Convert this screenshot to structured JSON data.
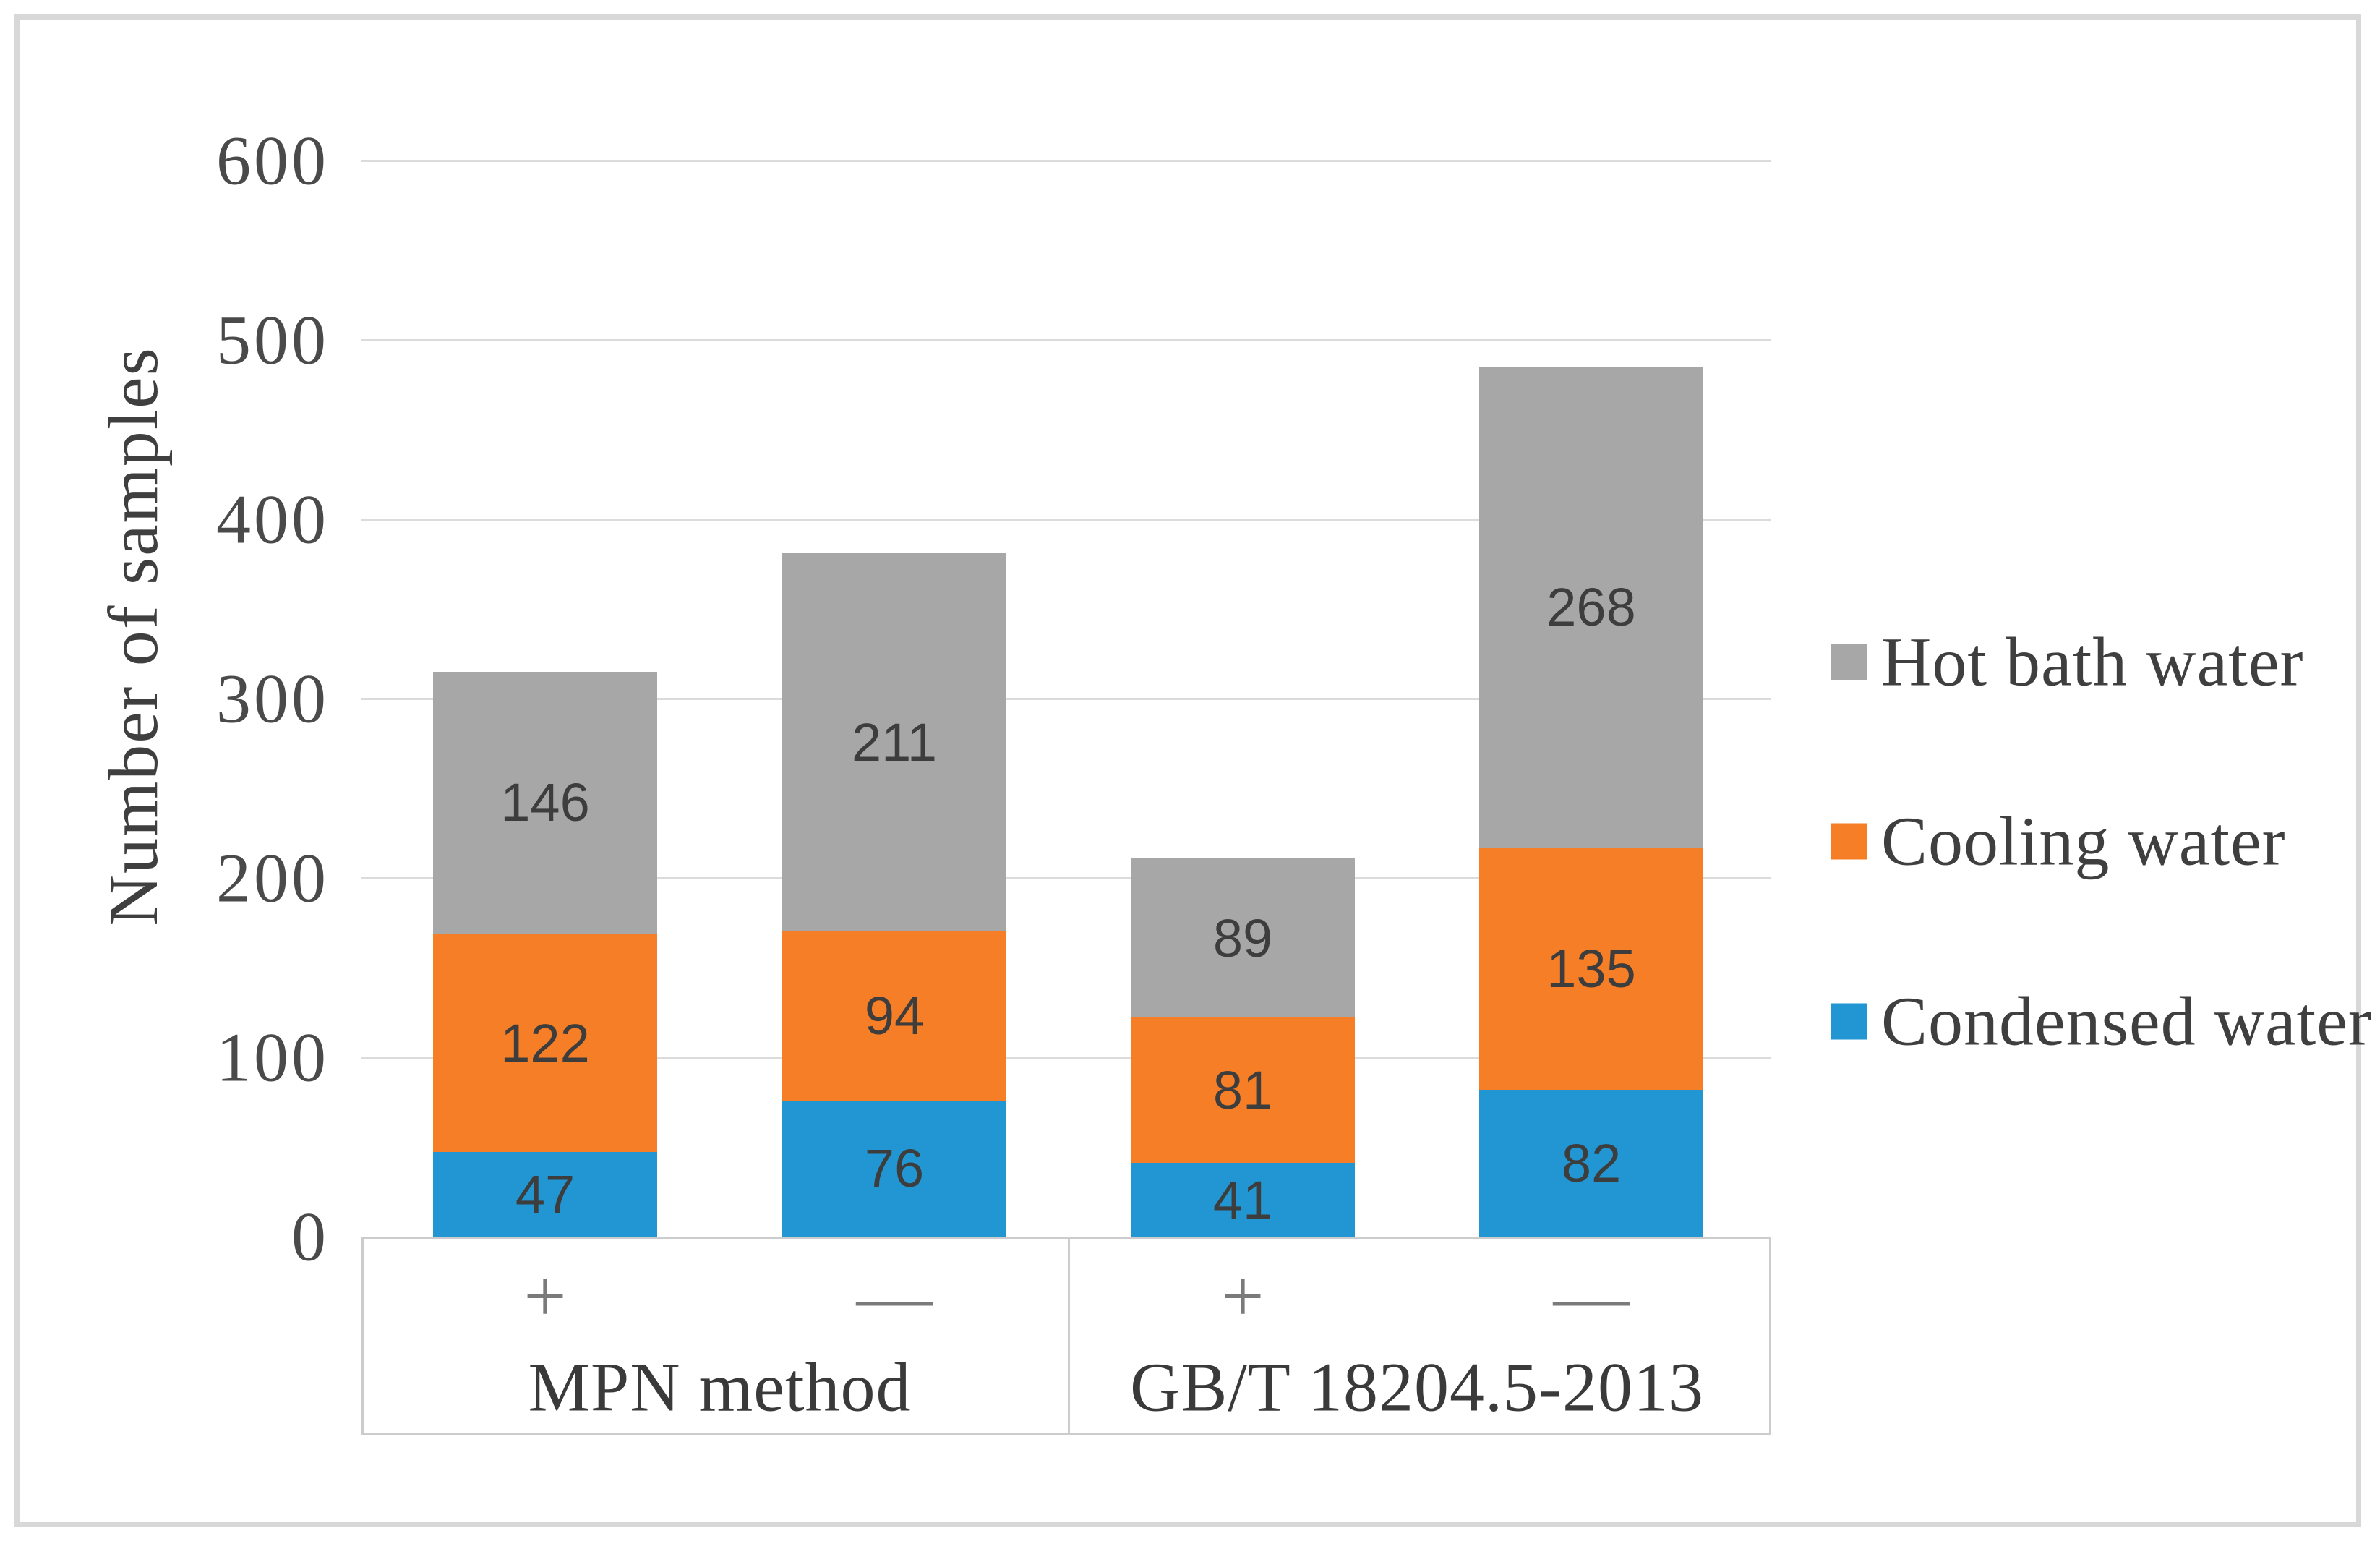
{
  "chart_data": {
    "type": "bar",
    "stacked": true,
    "title": "",
    "xlabel": "",
    "ylabel": "Number of samples",
    "ylim": [
      0,
      600
    ],
    "yticks": [
      0,
      100,
      200,
      300,
      400,
      500,
      600
    ],
    "grid": true,
    "gridline_color": "#dbdbdb",
    "axis_border_color": "#cccccc",
    "label_color": "#3d3d3d",
    "categories": [
      "+",
      "—",
      "+",
      "—"
    ],
    "groups": [
      {
        "label": "MPN method",
        "category_indexes": [
          0,
          1
        ]
      },
      {
        "label": "GB/T 18204.5-2013",
        "category_indexes": [
          2,
          3
        ]
      }
    ],
    "series": [
      {
        "name": "Condensed water",
        "color": "#2196d3",
        "values": [
          47,
          76,
          41,
          82
        ]
      },
      {
        "name": "Cooling water",
        "color": "#f57e27",
        "values": [
          122,
          94,
          81,
          135
        ]
      },
      {
        "name": "Hot bath water",
        "color": "#a7a7a7",
        "values": [
          146,
          211,
          89,
          268
        ]
      }
    ],
    "legend": {
      "position": "right",
      "entries": [
        "Hot bath water",
        "Cooling water",
        "Condensed water"
      ]
    }
  }
}
